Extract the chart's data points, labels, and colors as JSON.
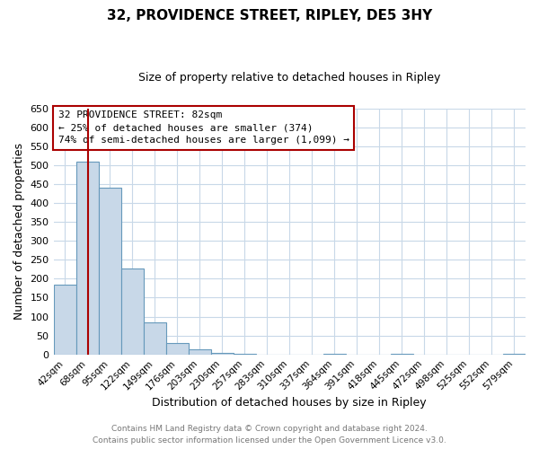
{
  "title": "32, PROVIDENCE STREET, RIPLEY, DE5 3HY",
  "subtitle": "Size of property relative to detached houses in Ripley",
  "xlabel": "Distribution of detached houses by size in Ripley",
  "ylabel": "Number of detached properties",
  "bar_labels": [
    "42sqm",
    "68sqm",
    "95sqm",
    "122sqm",
    "149sqm",
    "176sqm",
    "203sqm",
    "230sqm",
    "257sqm",
    "283sqm",
    "310sqm",
    "337sqm",
    "364sqm",
    "391sqm",
    "418sqm",
    "445sqm",
    "472sqm",
    "498sqm",
    "525sqm",
    "552sqm",
    "579sqm"
  ],
  "bar_values": [
    185,
    510,
    440,
    228,
    85,
    30,
    13,
    5,
    2,
    0,
    0,
    0,
    2,
    0,
    0,
    1,
    0,
    0,
    0,
    0,
    2
  ],
  "bar_color": "#c8d8e8",
  "bar_edge_color": "#6699bb",
  "red_line_x": 82,
  "annotation_title": "32 PROVIDENCE STREET: 82sqm",
  "annotation_line1": "← 25% of detached houses are smaller (374)",
  "annotation_line2": "74% of semi-detached houses are larger (1,099) →",
  "vline_color": "#aa0000",
  "annotation_box_edge": "#aa0000",
  "ylim": [
    0,
    650
  ],
  "yticks": [
    0,
    50,
    100,
    150,
    200,
    250,
    300,
    350,
    400,
    450,
    500,
    550,
    600,
    650
  ],
  "footer_line1": "Contains HM Land Registry data © Crown copyright and database right 2024.",
  "footer_line2": "Contains public sector information licensed under the Open Government Licence v3.0.",
  "bg_color": "#ffffff",
  "grid_color": "#c8d8e8"
}
